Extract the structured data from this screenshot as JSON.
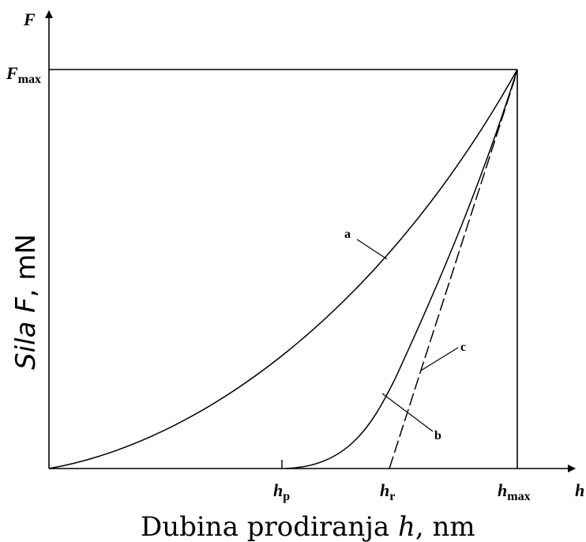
{
  "diagram": {
    "axis_symbols": {
      "y_axis_symbol": "F",
      "x_axis_symbol": "h"
    },
    "y_axis_title": {
      "italic": "Sila F",
      "rest": ", mN"
    },
    "x_axis_title": {
      "prefix": "Dubina prodiranja ",
      "italic": "h",
      "suffix": ", nm"
    },
    "y_ticks": {
      "fmax": {
        "base": "F",
        "sub": "max"
      }
    },
    "x_ticks": {
      "hp": {
        "base": "h",
        "sub": "p"
      },
      "hr": {
        "base": "h",
        "sub": "r"
      },
      "hmax": {
        "base": "h",
        "sub": "max"
      }
    },
    "curve_labels": {
      "a": "a",
      "b": "b",
      "c": "c"
    }
  }
}
